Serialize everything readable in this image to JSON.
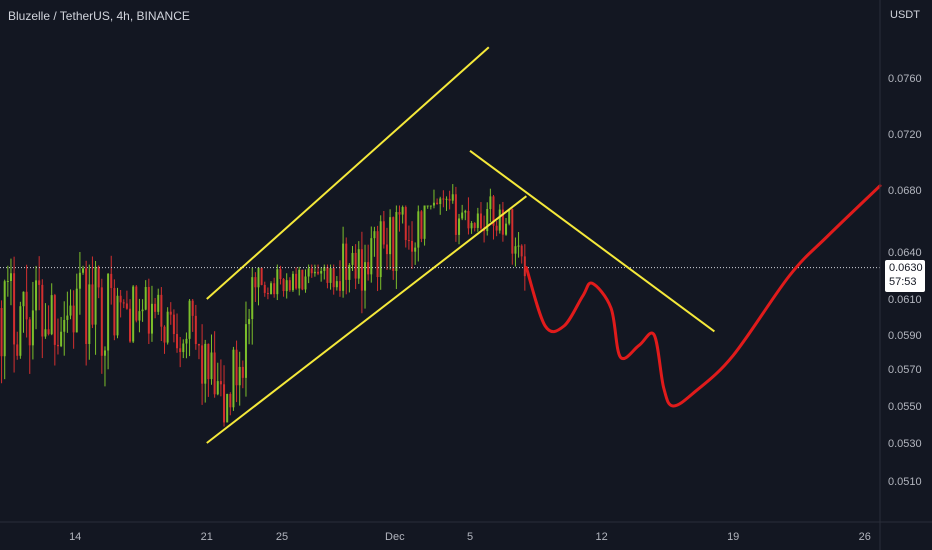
{
  "header": {
    "title": "Bluzelle / TetherUS, 4h, BINANCE",
    "unit": "USDT"
  },
  "price_tag": {
    "price": "0.0630",
    "countdown": "57:53"
  },
  "colors": {
    "background": "#131722",
    "up_candle": "#7cbf2b",
    "down_candle": "#d32f2f",
    "trendline": "#f5e93a",
    "projection": "#e01b1b",
    "axis_text": "#b2b5be",
    "last_price_line": "#d1d4dc"
  },
  "chart_data": {
    "type": "candlestick",
    "title": "Bluzelle / TetherUS, 4h, BINANCE",
    "ylabel": "USDT",
    "ylim": [
      0.049,
      0.08
    ],
    "y_ticks": [
      "0.0760",
      "0.0720",
      "0.0680",
      "0.0640",
      "0.0610",
      "0.0590",
      "0.0570",
      "0.0550",
      "0.0530",
      "0.0510"
    ],
    "x_ticks": [
      "14",
      "21",
      "25",
      "Dec",
      "5",
      "12",
      "19",
      "26"
    ],
    "x_tick_dates": [
      "2022-11-14",
      "2022-11-21",
      "2022-11-25",
      "2022-12-01",
      "2022-12-05",
      "2022-12-12",
      "2022-12-19",
      "2022-12-26"
    ],
    "xlim": [
      "2022-11-10",
      "2022-12-28"
    ],
    "last_price": 0.063,
    "price_segments": [
      {
        "from": "2022-11-10",
        "to": "2022-11-16",
        "start": 0.0605,
        "end": 0.0605,
        "low": 0.054,
        "high": 0.064
      },
      {
        "from": "2022-11-16",
        "to": "2022-11-20",
        "start": 0.0605,
        "end": 0.0595,
        "low": 0.0565,
        "high": 0.063
      },
      {
        "from": "2022-11-20",
        "to": "2022-11-22",
        "start": 0.0595,
        "end": 0.0545,
        "low": 0.0535,
        "high": 0.061
      },
      {
        "from": "2022-11-22",
        "to": "2022-11-24",
        "start": 0.0545,
        "end": 0.062,
        "low": 0.0545,
        "high": 0.063
      },
      {
        "from": "2022-11-24",
        "to": "2022-11-28",
        "start": 0.062,
        "end": 0.0622,
        "low": 0.06,
        "high": 0.0632
      },
      {
        "from": "2022-11-28",
        "to": "2022-12-03",
        "start": 0.0622,
        "end": 0.0665,
        "low": 0.0595,
        "high": 0.067
      },
      {
        "from": "2022-12-03",
        "to": "2022-12-07",
        "start": 0.0665,
        "end": 0.0662,
        "low": 0.0645,
        "high": 0.0695
      },
      {
        "from": "2022-12-07",
        "to": "2022-12-08",
        "start": 0.0662,
        "end": 0.063,
        "low": 0.0615,
        "high": 0.0668
      }
    ],
    "drawings": {
      "channel_upper": [
        [
          "2022-11-21",
          0.061
        ],
        [
          "2022-12-06",
          0.0782
        ]
      ],
      "channel_lower": [
        [
          "2022-11-21",
          0.053
        ],
        [
          "2022-12-08",
          0.0676
        ]
      ],
      "downtrend_line": [
        [
          "2022-12-05",
          0.0708
        ],
        [
          "2022-12-18",
          0.0592
        ]
      ],
      "projection": [
        [
          "2022-12-08",
          0.063
        ],
        [
          "2022-12-09",
          0.0595
        ],
        [
          "2022-12-10",
          0.0595
        ],
        [
          "2022-12-11",
          0.0612
        ],
        [
          "2022-12-11.5",
          0.062
        ],
        [
          "2022-12-12.5",
          0.0605
        ],
        [
          "2022-12-13",
          0.0577
        ],
        [
          "2022-12-14",
          0.0584
        ],
        [
          "2022-12-14.8",
          0.059
        ],
        [
          "2022-12-15.3",
          0.056
        ],
        [
          "2022-12-15.8",
          0.055
        ],
        [
          "2022-12-17",
          0.0558
        ],
        [
          "2022-12-19",
          0.0578
        ],
        [
          "2022-12-22",
          0.0625
        ],
        [
          "2022-12-24",
          0.065
        ],
        [
          "2022-12-28",
          0.0683
        ]
      ]
    }
  }
}
